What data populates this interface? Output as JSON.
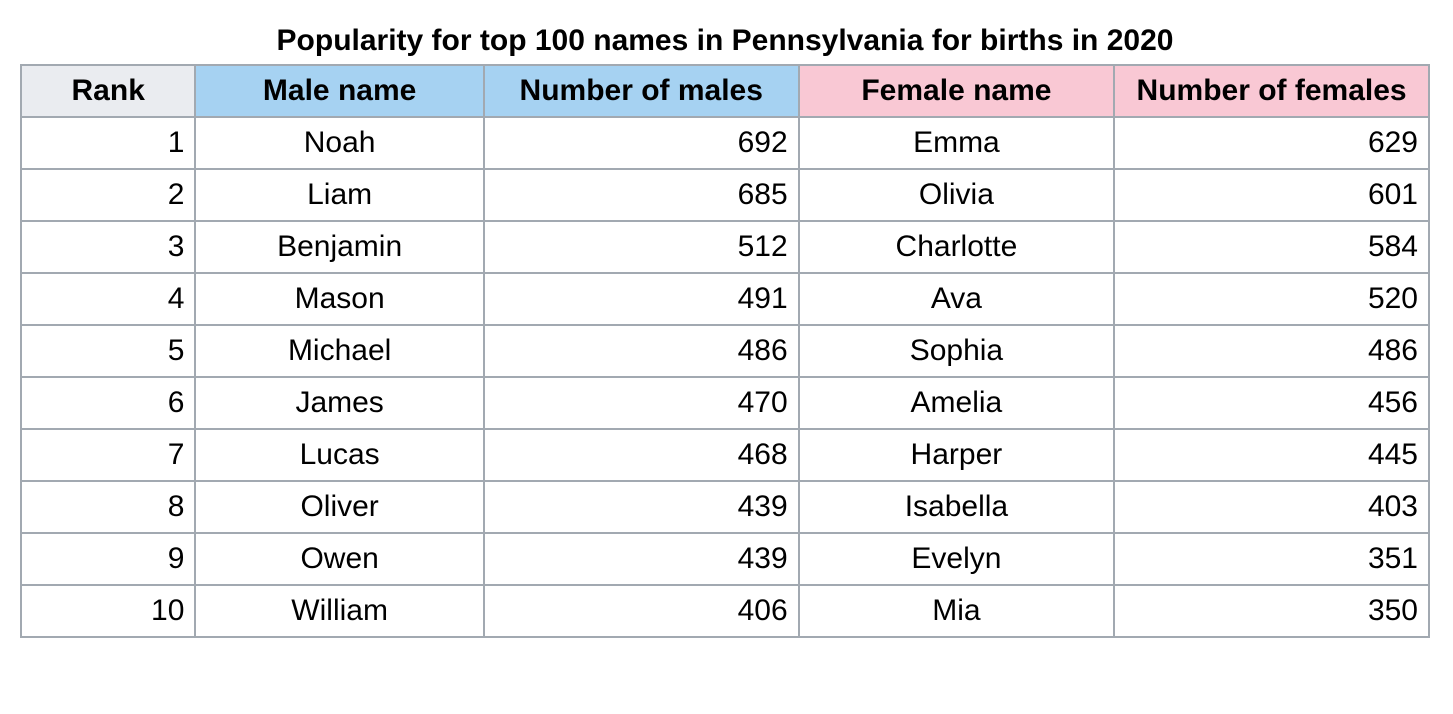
{
  "table": {
    "type": "table",
    "caption": "Popularity for top 100 names in Pennsylvania for births in 2020",
    "columns": [
      {
        "key": "rank",
        "label": "Rank",
        "align": "right",
        "header_bg": "#eaecf0"
      },
      {
        "key": "male_name",
        "label": "Male name",
        "align": "center",
        "header_bg": "#a6d2f2"
      },
      {
        "key": "male_count",
        "label": "Number of males",
        "align": "right",
        "header_bg": "#a6d2f2"
      },
      {
        "key": "female_name",
        "label": "Female name",
        "align": "center",
        "header_bg": "#f9c8d4"
      },
      {
        "key": "female_count",
        "label": "Number of females",
        "align": "right",
        "header_bg": "#f9c8d4"
      }
    ],
    "rows": [
      {
        "rank": 1,
        "male_name": "Noah",
        "male_count": 692,
        "female_name": "Emma",
        "female_count": 629
      },
      {
        "rank": 2,
        "male_name": "Liam",
        "male_count": 685,
        "female_name": "Olivia",
        "female_count": 601
      },
      {
        "rank": 3,
        "male_name": "Benjamin",
        "male_count": 512,
        "female_name": "Charlotte",
        "female_count": 584
      },
      {
        "rank": 4,
        "male_name": "Mason",
        "male_count": 491,
        "female_name": "Ava",
        "female_count": 520
      },
      {
        "rank": 5,
        "male_name": "Michael",
        "male_count": 486,
        "female_name": "Sophia",
        "female_count": 486
      },
      {
        "rank": 6,
        "male_name": "James",
        "male_count": 470,
        "female_name": "Amelia",
        "female_count": 456
      },
      {
        "rank": 7,
        "male_name": "Lucas",
        "male_count": 468,
        "female_name": "Harper",
        "female_count": 445
      },
      {
        "rank": 8,
        "male_name": "Oliver",
        "male_count": 439,
        "female_name": "Isabella",
        "female_count": 403
      },
      {
        "rank": 9,
        "male_name": "Owen",
        "male_count": 439,
        "female_name": "Evelyn",
        "female_count": 351
      },
      {
        "rank": 10,
        "male_name": "William",
        "male_count": 406,
        "female_name": "Mia",
        "female_count": 350
      }
    ],
    "styling": {
      "border_color": "#a2a9b1",
      "cell_bg": "#ffffff",
      "caption_fontsize": 30,
      "cell_fontsize": 30,
      "header_font_weight": "bold",
      "male_header_bg": "#a6d2f2",
      "female_header_bg": "#f9c8d4",
      "rank_header_bg": "#eaecf0",
      "text_color": "#000000"
    }
  }
}
